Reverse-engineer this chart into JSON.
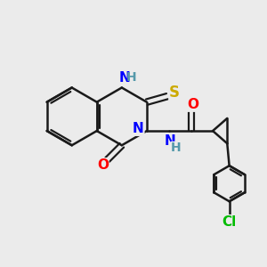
{
  "background_color": "#ebebeb",
  "bond_color": "#1a1a1a",
  "bond_width": 1.8,
  "atom_colors": {
    "N": "#0000ff",
    "O": "#ff0000",
    "S": "#ccaa00",
    "Cl": "#00bb00",
    "NH_gray": "#5599aa"
  },
  "font_size": 11,
  "figsize": [
    3.0,
    3.0
  ],
  "dpi": 100
}
